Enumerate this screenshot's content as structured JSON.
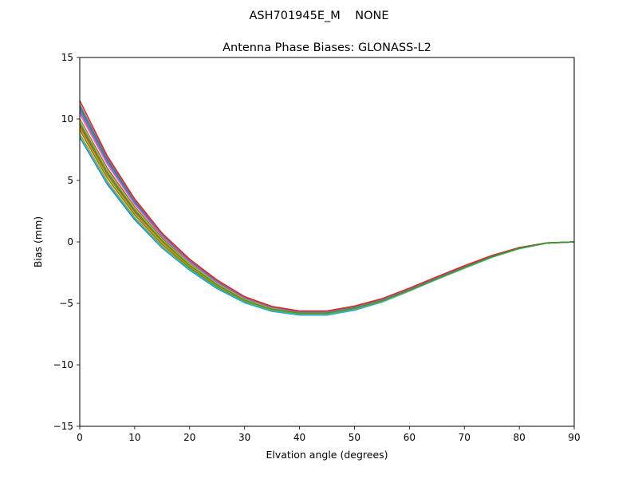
{
  "chart_data": {
    "type": "line",
    "suptitle": "ASH701945E_M    NONE",
    "title": "Antenna Phase Biases: GLONASS-L2",
    "xlabel": "Elvation angle (degrees)",
    "ylabel": "Bias (mm)",
    "xlim": [
      0,
      90
    ],
    "ylim": [
      -15,
      15
    ],
    "xticks": [
      0,
      10,
      20,
      30,
      40,
      50,
      60,
      70,
      80,
      90
    ],
    "yticks": [
      -15,
      -10,
      -5,
      0,
      5,
      10,
      15
    ],
    "grid": false,
    "legend": "none",
    "x": [
      0,
      5,
      10,
      15,
      20,
      25,
      30,
      35,
      40,
      45,
      50,
      55,
      60,
      65,
      70,
      75,
      80,
      85,
      90
    ],
    "series": [
      {
        "color": "#1f77b4",
        "values": [
          8.5,
          4.7,
          1.8,
          -0.5,
          -2.3,
          -3.8,
          -4.95,
          -5.65,
          -5.95,
          -5.95,
          -5.55,
          -4.9,
          -4.0,
          -3.05,
          -2.15,
          -1.25,
          -0.55,
          -0.1,
          0.0
        ]
      },
      {
        "color": "#ff7f0e",
        "values": [
          8.8,
          4.95,
          2.0,
          -0.35,
          -2.2,
          -3.7,
          -4.9,
          -5.6,
          -5.9,
          -5.9,
          -5.5,
          -4.87,
          -3.98,
          -3.03,
          -2.13,
          -1.24,
          -0.54,
          -0.1,
          0.0
        ]
      },
      {
        "color": "#2ca02c",
        "values": [
          9.1,
          5.2,
          2.2,
          -0.2,
          -2.1,
          -3.62,
          -4.85,
          -5.55,
          -5.85,
          -5.85,
          -5.45,
          -4.84,
          -3.96,
          -3.02,
          -2.12,
          -1.23,
          -0.53,
          -0.1,
          0.0
        ]
      },
      {
        "color": "#d62728",
        "values": [
          9.4,
          5.5,
          2.45,
          0.0,
          -1.95,
          -3.52,
          -4.78,
          -5.5,
          -5.8,
          -5.8,
          -5.4,
          -4.8,
          -3.93,
          -3.0,
          -2.1,
          -1.22,
          -0.52,
          -0.1,
          0.0
        ]
      },
      {
        "color": "#9467bd",
        "values": [
          9.7,
          5.75,
          2.65,
          0.15,
          -1.85,
          -3.45,
          -4.72,
          -5.45,
          -5.77,
          -5.77,
          -5.37,
          -4.77,
          -3.9,
          -2.97,
          -2.07,
          -1.2,
          -0.51,
          -0.09,
          0.0
        ]
      },
      {
        "color": "#8c564b",
        "values": [
          10.0,
          6.0,
          2.85,
          0.3,
          -1.75,
          -3.38,
          -4.66,
          -5.4,
          -5.74,
          -5.74,
          -5.34,
          -4.74,
          -3.87,
          -2.94,
          -2.04,
          -1.18,
          -0.5,
          -0.09,
          0.0
        ]
      },
      {
        "color": "#e377c2",
        "values": [
          10.4,
          6.3,
          3.05,
          0.45,
          -1.65,
          -3.3,
          -4.6,
          -5.35,
          -5.7,
          -5.7,
          -5.3,
          -4.7,
          -3.84,
          -2.91,
          -2.01,
          -1.16,
          -0.49,
          -0.09,
          0.0
        ]
      },
      {
        "color": "#7f7f7f",
        "values": [
          10.8,
          6.55,
          3.2,
          0.55,
          -1.55,
          -3.22,
          -4.55,
          -5.3,
          -5.67,
          -5.67,
          -5.27,
          -4.67,
          -3.81,
          -2.88,
          -1.98,
          -1.14,
          -0.48,
          -0.08,
          0.0
        ]
      },
      {
        "color": "#bcbd22",
        "values": [
          9.9,
          5.85,
          2.75,
          0.2,
          -1.8,
          -3.42,
          -4.7,
          -5.43,
          -5.76,
          -5.76,
          -5.36,
          -4.76,
          -3.89,
          -2.96,
          -2.06,
          -1.19,
          -0.5,
          -0.09,
          0.0
        ]
      },
      {
        "color": "#17becf",
        "values": [
          8.6,
          4.8,
          1.9,
          -0.45,
          -2.25,
          -3.75,
          -4.93,
          -5.63,
          -5.93,
          -5.93,
          -5.53,
          -4.89,
          -3.99,
          -3.04,
          -2.14,
          -1.25,
          -0.55,
          -0.1,
          0.0
        ]
      },
      {
        "color": "#1f77b4",
        "values": [
          11.0,
          6.7,
          3.3,
          0.6,
          -1.5,
          -3.18,
          -4.52,
          -5.28,
          -5.65,
          -5.65,
          -5.25,
          -4.65,
          -3.79,
          -2.86,
          -1.96,
          -1.13,
          -0.47,
          -0.08,
          0.0
        ]
      },
      {
        "color": "#ff7f0e",
        "values": [
          9.3,
          5.4,
          2.35,
          -0.05,
          -2.0,
          -3.55,
          -4.8,
          -5.52,
          -5.82,
          -5.82,
          -5.42,
          -4.82,
          -3.95,
          -3.01,
          -2.11,
          -1.22,
          -0.52,
          -0.1,
          0.0
        ]
      },
      {
        "color": "#7f7f7f",
        "values": [
          11.2,
          6.85,
          3.4,
          0.65,
          -1.45,
          -3.14,
          -4.49,
          -5.26,
          -5.64,
          -5.64,
          -5.24,
          -4.64,
          -3.78,
          -2.85,
          -1.95,
          -1.12,
          -0.47,
          -0.08,
          0.0
        ]
      },
      {
        "color": "#9467bd",
        "values": [
          10.6,
          6.45,
          3.15,
          0.5,
          -1.6,
          -3.27,
          -4.58,
          -5.33,
          -5.69,
          -5.69,
          -5.29,
          -4.69,
          -3.83,
          -2.9,
          -2.0,
          -1.15,
          -0.49,
          -0.09,
          0.0
        ]
      },
      {
        "color": "#d62728",
        "values": [
          11.5,
          7.0,
          3.5,
          0.7,
          -1.4,
          -3.1,
          -4.45,
          -5.25,
          -5.62,
          -5.62,
          -5.22,
          -4.62,
          -3.76,
          -2.84,
          -1.94,
          -1.11,
          -0.46,
          -0.08,
          0.0
        ]
      },
      {
        "color": "#2ca02c",
        "values": [
          9.6,
          5.6,
          2.55,
          0.1,
          -1.9,
          -3.48,
          -4.75,
          -5.48,
          -5.79,
          -5.79,
          -5.39,
          -4.79,
          -3.92,
          -2.99,
          -2.09,
          -1.21,
          -0.51,
          -0.09,
          0.0
        ]
      }
    ]
  }
}
